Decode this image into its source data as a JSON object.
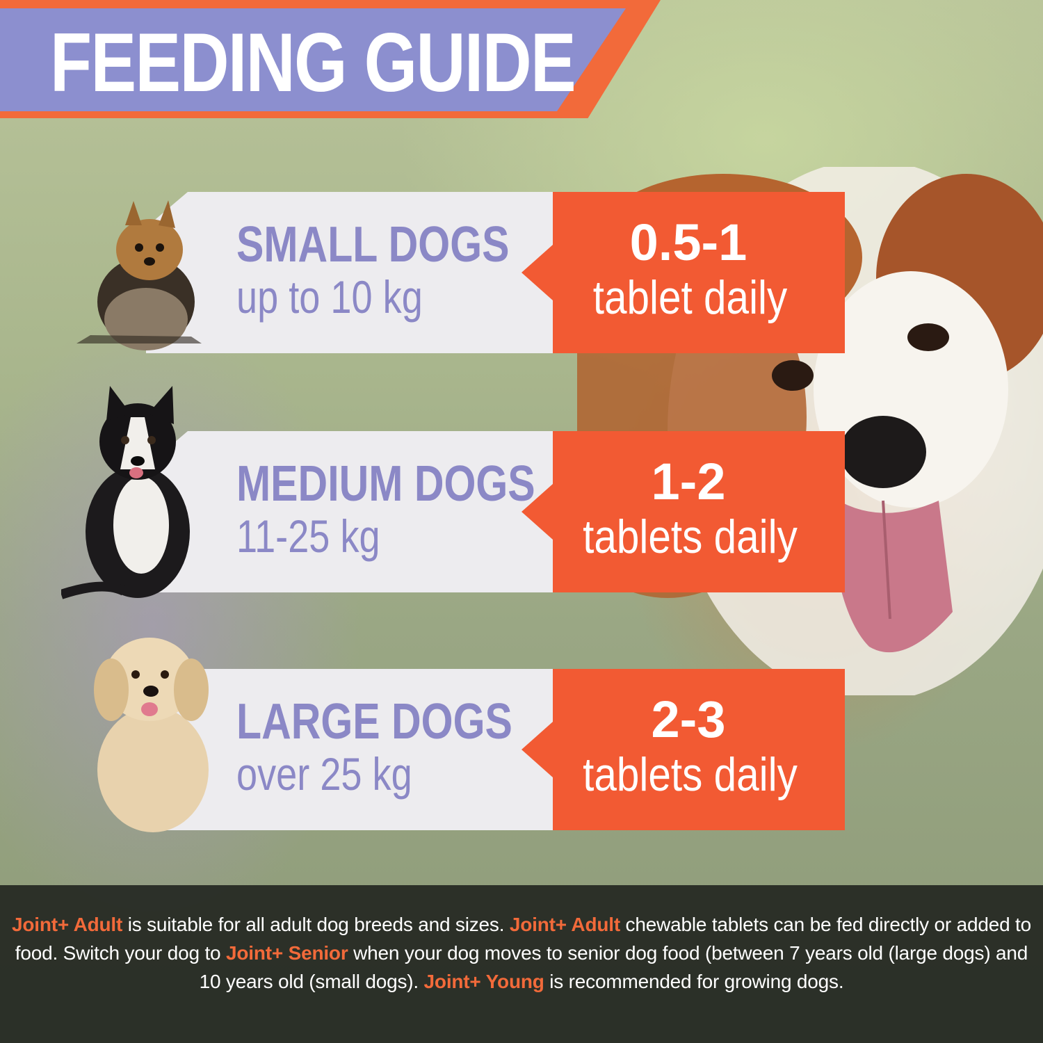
{
  "header": {
    "title": "FEEDING GUIDE"
  },
  "rows": [
    {
      "size": "SMALL DOGS",
      "weight": "up to 10 kg",
      "amount": "0.5-1",
      "unit": "tablet daily"
    },
    {
      "size": "MEDIUM DOGS",
      "weight": "11-25 kg",
      "amount": "1-2",
      "unit": "tablets daily"
    },
    {
      "size": "LARGE DOGS",
      "weight": "over 25 kg",
      "amount": "2-3",
      "unit": "tablets daily"
    }
  ],
  "footer": {
    "p1": "Joint+ Adult",
    "p2": " is suitable for all adult dog breeds and sizes. ",
    "p3": "Joint+ Adult",
    "p4": " chewable tablets can be fed directly or added to food.  Switch your dog to ",
    "p5": "Joint+ Senior",
    "p6": " when your dog moves to senior dog food (between 7 years old (large dogs) and 10 years old (small dogs). ",
    "p7": "Joint+ Young",
    "p8": " is recommended for growing dogs."
  },
  "colors": {
    "accent_orange": "#f25a33",
    "title_purple": "#8c8fcf",
    "text_purple": "#8b88c6",
    "panel_light": "#edecef"
  },
  "images": [
    "yorkshire-terrier-photo",
    "border-collie-photo",
    "golden-retriever-photo",
    "spaniel-background-photo"
  ]
}
